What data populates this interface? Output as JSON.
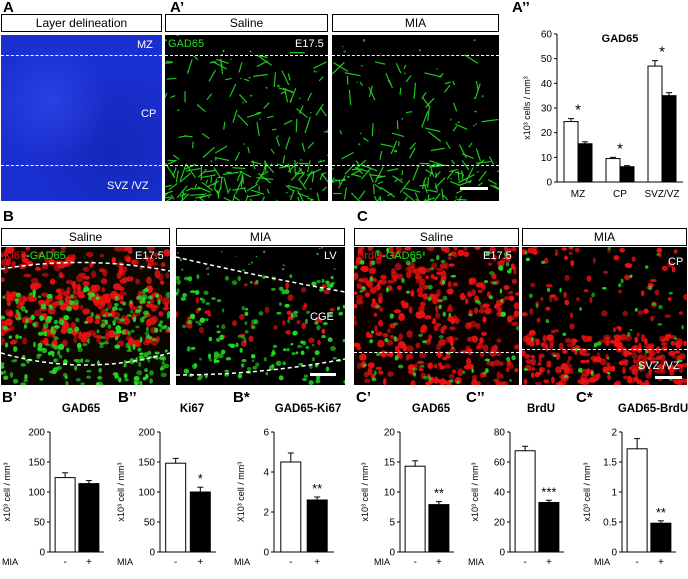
{
  "panels": {
    "A": {
      "letter": "A",
      "box": "Layer delineation",
      "labels": [
        "MZ",
        "CP",
        "SVZ /VZ"
      ]
    },
    "A1": {
      "letter": "A’",
      "boxes": [
        "Saline",
        "MIA"
      ],
      "marker": "GAD65",
      "age": "E17.5"
    },
    "A2": {
      "letter": "A’’"
    },
    "B": {
      "letter": "B",
      "boxes": [
        "Saline",
        "MIA"
      ],
      "marker_a": "Ki67",
      "marker_sep": "-",
      "marker_b": "GAD65",
      "age": "E17.5",
      "labels": [
        "LV",
        "CGE"
      ]
    },
    "C": {
      "letter": "C",
      "boxes": [
        "Saline",
        "MIA"
      ],
      "marker_a": "BrdU",
      "marker_sep": "-",
      "marker_b": "GAD65",
      "age": "E17.5",
      "labels": [
        "CP",
        "SVZ /VZ"
      ]
    },
    "bottom_letters": [
      "B’",
      "B’’",
      "B*",
      "C’",
      "C’’",
      "C*"
    ]
  },
  "colors": {
    "dapi": "#1a2fd0",
    "green": "#22dd22",
    "red": "#ee1111",
    "bar_white": "#ffffff",
    "bar_black": "#000000"
  },
  "chart_data": [
    {
      "id": "A2",
      "type": "bar",
      "title": "GAD65",
      "ylabel": "x10³ cells / mm³",
      "ylim": [
        0,
        60
      ],
      "yticks": [
        0,
        10,
        20,
        30,
        40,
        50,
        60
      ],
      "categories": [
        "MZ",
        "CP",
        "SVZ/VZ"
      ],
      "series": [
        {
          "values": [
            24.5,
            9.5,
            47
          ],
          "errors": [
            1.2,
            0.5,
            2.2
          ]
        },
        {
          "values": [
            15.5,
            6.2,
            35
          ],
          "errors": [
            0.8,
            0.4,
            1.2
          ]
        }
      ],
      "significance": [
        "*",
        "*",
        "*"
      ]
    },
    {
      "id": "B1",
      "type": "bar",
      "title": "GAD65",
      "ylabel": "x10³ cell / mm³",
      "ylim": [
        0,
        200
      ],
      "yticks": [
        0,
        50,
        100,
        150,
        200
      ],
      "x_prefix": "MIA",
      "categories": [
        "-",
        "+"
      ],
      "values": [
        124,
        114
      ],
      "errors": [
        8,
        5
      ],
      "significance": ""
    },
    {
      "id": "B2",
      "type": "bar",
      "title": "Ki67",
      "ylabel": "x10³ cell / mm³",
      "ylim": [
        0,
        200
      ],
      "yticks": [
        0,
        50,
        100,
        150,
        200
      ],
      "x_prefix": "MIA",
      "categories": [
        "-",
        "+"
      ],
      "values": [
        148,
        100
      ],
      "errors": [
        8,
        8
      ],
      "significance": "*"
    },
    {
      "id": "B3",
      "type": "bar",
      "title": "GAD65-Ki67",
      "ylabel": "X10³ cell / mm³",
      "ylim": [
        0,
        6
      ],
      "yticks": [
        0,
        2,
        4,
        6
      ],
      "x_prefix": "MIA",
      "categories": [
        "-",
        "+"
      ],
      "values": [
        4.5,
        2.6
      ],
      "errors": [
        0.45,
        0.15
      ],
      "significance": "**"
    },
    {
      "id": "C1",
      "type": "bar",
      "title": "GAD65",
      "ylabel": "x10³ cell / mm³",
      "ylim": [
        0,
        20
      ],
      "yticks": [
        0,
        5,
        10,
        15,
        20
      ],
      "x_prefix": "MIA",
      "categories": [
        "-",
        "+"
      ],
      "values": [
        14.3,
        7.9
      ],
      "errors": [
        0.9,
        0.5
      ],
      "significance": "**"
    },
    {
      "id": "C2",
      "type": "bar",
      "title": "BrdU",
      "ylabel": "x10³ cell / mm³",
      "ylim": [
        0,
        80
      ],
      "yticks": [
        0,
        20,
        40,
        60,
        80
      ],
      "x_prefix": "MIA",
      "categories": [
        "-",
        "+"
      ],
      "values": [
        67.5,
        33
      ],
      "errors": [
        3,
        1.5
      ],
      "significance": "***"
    },
    {
      "id": "C3",
      "type": "bar",
      "title": "GAD65-BrdU",
      "ylabel": "x10³ cell / mm³",
      "ylim": [
        0,
        2
      ],
      "yticks": [
        0,
        0.5,
        1,
        1.5,
        2
      ],
      "x_prefix": "MIA",
      "categories": [
        "-",
        "+"
      ],
      "values": [
        1.72,
        0.48
      ],
      "errors": [
        0.17,
        0.04
      ],
      "significance": "**"
    }
  ]
}
